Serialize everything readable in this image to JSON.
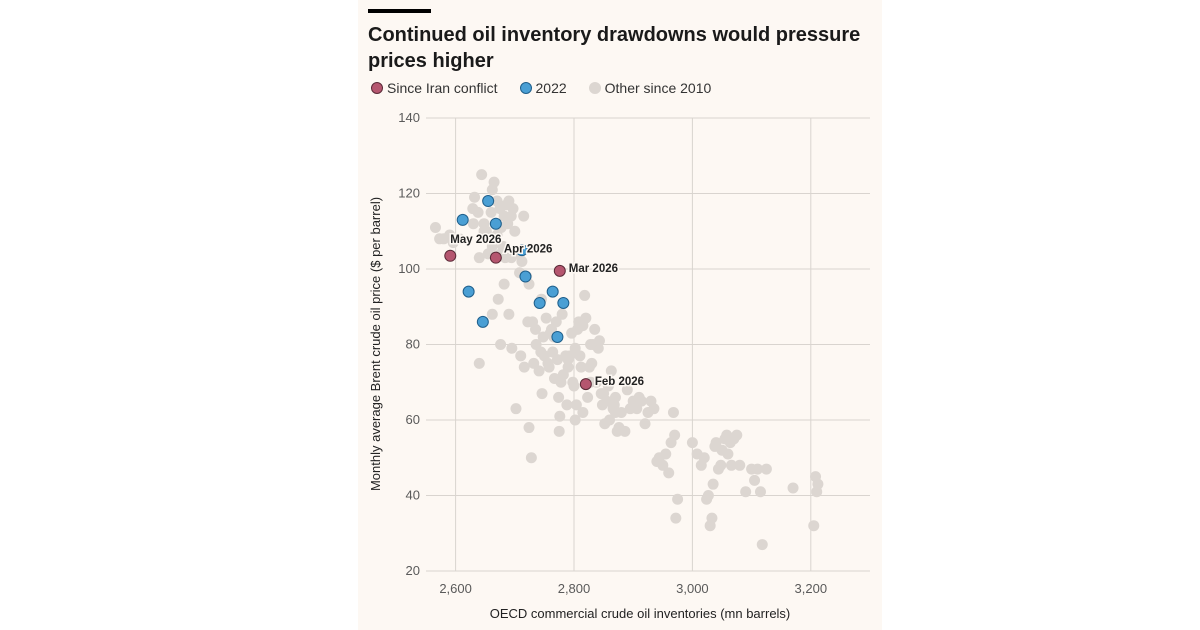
{
  "chart_data": {
    "type": "scatter",
    "title": "Continued oil inventory drawdowns would pressure prices higher",
    "xlabel": "OECD commercial crude oil inventories (mn barrels)",
    "ylabel": "Monthly average Brent crude oil price ($ per barrel)",
    "xlim": [
      2550,
      3300
    ],
    "ylim": [
      20,
      140
    ],
    "x_ticks": [
      2600,
      2800,
      3000,
      3200
    ],
    "x_tick_labels": [
      "2,600",
      "2,800",
      "3,000",
      "3,200"
    ],
    "y_ticks": [
      20,
      40,
      60,
      80,
      100,
      120,
      140
    ],
    "y_tick_labels": [
      "20",
      "40",
      "60",
      "80",
      "100",
      "120",
      "140"
    ],
    "legend_position": "top-left",
    "grid": true,
    "series": [
      {
        "name": "Other since 2010",
        "color": "#dcd6d1",
        "points": [
          [
            2566,
            111
          ],
          [
            2573,
            108
          ],
          [
            2580,
            108
          ],
          [
            2590,
            109
          ],
          [
            2596,
            107
          ],
          [
            2606,
            108
          ],
          [
            2630,
            112
          ],
          [
            2632,
            119
          ],
          [
            2629,
            116
          ],
          [
            2638,
            115
          ],
          [
            2644,
            125
          ],
          [
            2648,
            112
          ],
          [
            2652,
            110
          ],
          [
            2660,
            115
          ],
          [
            2662,
            121
          ],
          [
            2665,
            123
          ],
          [
            2670,
            118
          ],
          [
            2675,
            116
          ],
          [
            2677,
            111
          ],
          [
            2680,
            106
          ],
          [
            2682,
            114
          ],
          [
            2686,
            117
          ],
          [
            2690,
            118
          ],
          [
            2694,
            114
          ],
          [
            2700,
            110
          ],
          [
            2708,
            104
          ],
          [
            2712,
            102
          ],
          [
            2715,
            114
          ],
          [
            2720,
            98
          ],
          [
            2724,
            96
          ],
          [
            2640,
            103
          ],
          [
            2648,
            110
          ],
          [
            2655,
            104
          ],
          [
            2662,
            106
          ],
          [
            2670,
            109
          ],
          [
            2676,
            104
          ],
          [
            2684,
            103
          ],
          [
            2694,
            103
          ],
          [
            2703,
            104
          ],
          [
            2708,
            99
          ],
          [
            2697,
            116
          ],
          [
            2688,
            112
          ],
          [
            2640,
            75
          ],
          [
            2662,
            88
          ],
          [
            2672,
            92
          ],
          [
            2676,
            80
          ],
          [
            2682,
            96
          ],
          [
            2690,
            88
          ],
          [
            2695,
            79
          ],
          [
            2702,
            63
          ],
          [
            2710,
            77
          ],
          [
            2716,
            74
          ],
          [
            2722,
            86
          ],
          [
            2724,
            58
          ],
          [
            2730,
            86
          ],
          [
            2732,
            75
          ],
          [
            2736,
            80
          ],
          [
            2741,
            73
          ],
          [
            2744,
            78
          ],
          [
            2746,
            67
          ],
          [
            2748,
            82
          ],
          [
            2750,
            77
          ],
          [
            2753,
            87
          ],
          [
            2756,
            75
          ],
          [
            2758,
            74
          ],
          [
            2760,
            83
          ],
          [
            2762,
            84
          ],
          [
            2764,
            78
          ],
          [
            2767,
            71
          ],
          [
            2770,
            86
          ],
          [
            2772,
            76
          ],
          [
            2774,
            66
          ],
          [
            2776,
            61
          ],
          [
            2778,
            70
          ],
          [
            2780,
            88
          ],
          [
            2782,
            72
          ],
          [
            2786,
            77
          ],
          [
            2788,
            64
          ],
          [
            2790,
            74
          ],
          [
            2793,
            77
          ],
          [
            2796,
            83
          ],
          [
            2798,
            70
          ],
          [
            2800,
            69
          ],
          [
            2802,
            79
          ],
          [
            2804,
            64
          ],
          [
            2806,
            84
          ],
          [
            2808,
            86
          ],
          [
            2810,
            77
          ],
          [
            2812,
            74
          ],
          [
            2815,
            85
          ],
          [
            2818,
            93
          ],
          [
            2820,
            87
          ],
          [
            2823,
            66
          ],
          [
            2826,
            74
          ],
          [
            2828,
            70
          ],
          [
            2830,
            75
          ],
          [
            2832,
            80
          ],
          [
            2835,
            84
          ],
          [
            2838,
            70
          ],
          [
            2841,
            79
          ],
          [
            2843,
            81
          ],
          [
            2846,
            67
          ],
          [
            2848,
            64
          ],
          [
            2850,
            67
          ],
          [
            2852,
            59
          ],
          [
            2855,
            65
          ],
          [
            2858,
            69
          ],
          [
            2860,
            60
          ],
          [
            2863,
            73
          ],
          [
            2866,
            63
          ],
          [
            2868,
            64
          ],
          [
            2870,
            66
          ],
          [
            2873,
            57
          ],
          [
            2876,
            58
          ],
          [
            2880,
            62
          ],
          [
            2886,
            57
          ],
          [
            2890,
            68
          ],
          [
            2895,
            63
          ],
          [
            2900,
            65
          ],
          [
            2906,
            63
          ],
          [
            2910,
            66
          ],
          [
            2914,
            65
          ],
          [
            2920,
            59
          ],
          [
            2925,
            62
          ],
          [
            2930,
            65
          ],
          [
            2935,
            63
          ],
          [
            2940,
            49
          ],
          [
            2944,
            50
          ],
          [
            2950,
            48
          ],
          [
            2955,
            51
          ],
          [
            2960,
            46
          ],
          [
            2964,
            54
          ],
          [
            2968,
            62
          ],
          [
            2970,
            56
          ],
          [
            2972,
            34
          ],
          [
            2975,
            39
          ],
          [
            2728,
            50
          ],
          [
            2775,
            57
          ],
          [
            2815,
            62
          ],
          [
            2790,
            76
          ],
          [
            3000,
            54
          ],
          [
            3008,
            51
          ],
          [
            3015,
            48
          ],
          [
            3020,
            50
          ],
          [
            3024,
            39
          ],
          [
            3027,
            40
          ],
          [
            3030,
            32
          ],
          [
            3033,
            34
          ],
          [
            3035,
            43
          ],
          [
            3038,
            53
          ],
          [
            3040,
            54
          ],
          [
            3044,
            47
          ],
          [
            3048,
            48
          ],
          [
            3050,
            52
          ],
          [
            3055,
            55
          ],
          [
            3058,
            56
          ],
          [
            3060,
            51
          ],
          [
            3064,
            54
          ],
          [
            3066,
            48
          ],
          [
            3070,
            55
          ],
          [
            3075,
            56
          ],
          [
            3080,
            48
          ],
          [
            3090,
            41
          ],
          [
            3100,
            47
          ],
          [
            3105,
            44
          ],
          [
            3110,
            47
          ],
          [
            3115,
            41
          ],
          [
            3118,
            27
          ],
          [
            3125,
            47
          ],
          [
            3170,
            42
          ],
          [
            3205,
            32
          ],
          [
            3208,
            45
          ],
          [
            3210,
            41
          ],
          [
            3212,
            43
          ],
          [
            2870,
            62
          ],
          [
            2828,
            80
          ],
          [
            2766,
            82
          ],
          [
            2745,
            92
          ],
          [
            2735,
            84
          ],
          [
            2802,
            60
          ]
        ]
      },
      {
        "name": "2022",
        "color": "#4a9fd4",
        "points": [
          [
            2612,
            113
          ],
          [
            2622,
            94
          ],
          [
            2646,
            86
          ],
          [
            2655,
            118
          ],
          [
            2668,
            112
          ],
          [
            2712,
            105
          ],
          [
            2718,
            98
          ],
          [
            2742,
            91
          ],
          [
            2764,
            94
          ],
          [
            2772,
            82
          ],
          [
            2782,
            91
          ]
        ]
      },
      {
        "name": "Since Iran conflict",
        "color": "#b5566f",
        "points": [
          [
            2591,
            103.5
          ],
          [
            2668,
            103
          ],
          [
            2776,
            99.5
          ],
          [
            2820,
            69.5
          ]
        ]
      }
    ],
    "annotations": [
      {
        "label": "May 2026",
        "x": 2591,
        "y": 103.5
      },
      {
        "label": "Apr 2026",
        "x": 2668,
        "y": 103
      },
      {
        "label": "Mar 2026",
        "x": 2776,
        "y": 99.5
      },
      {
        "label": "Feb 2026",
        "x": 2820,
        "y": 69.5
      }
    ]
  }
}
